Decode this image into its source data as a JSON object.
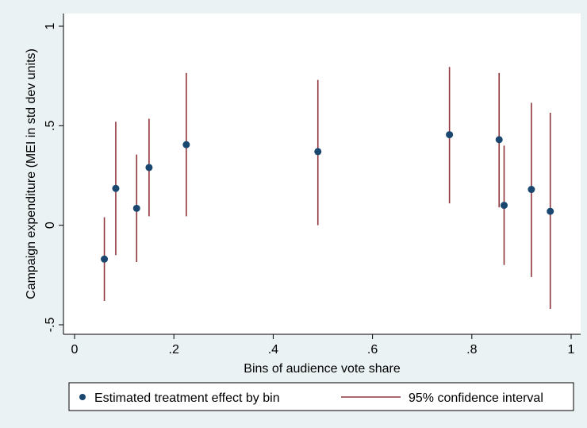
{
  "chart_data": {
    "type": "scatter",
    "xlabel": "Bins of audience vote share",
    "ylabel": "Campaign expenditure (MEI in std dev units)",
    "xlim": [
      0,
      1
    ],
    "ylim": [
      -0.5,
      1
    ],
    "x_ticks": [
      0,
      0.2,
      0.4,
      0.6,
      0.8,
      1
    ],
    "x_tick_labels": [
      "0",
      ".2",
      ".4",
      ".6",
      ".8",
      "1"
    ],
    "y_ticks": [
      -0.5,
      0,
      0.5,
      1
    ],
    "y_tick_labels": [
      "-.5",
      "0",
      ".5",
      "1"
    ],
    "grid": false,
    "legend_position": "bottom",
    "series": [
      {
        "name": "Estimated treatment effect by bin",
        "kind": "point",
        "color": "#1a476f",
        "x": [
          0.06,
          0.083,
          0.125,
          0.15,
          0.225,
          0.49,
          0.755,
          0.855,
          0.865,
          0.92,
          0.958
        ],
        "y": [
          -0.17,
          0.185,
          0.085,
          0.29,
          0.405,
          0.37,
          0.455,
          0.43,
          0.1,
          0.18,
          0.07
        ]
      },
      {
        "name": "95% confidence interval",
        "kind": "errorbar",
        "color": "#90353b",
        "x": [
          0.06,
          0.083,
          0.125,
          0.15,
          0.225,
          0.49,
          0.755,
          0.855,
          0.865,
          0.92,
          0.958
        ],
        "low": [
          -0.38,
          -0.15,
          -0.185,
          0.045,
          0.045,
          0.0,
          0.11,
          0.09,
          -0.2,
          -0.26,
          -0.42
        ],
        "high": [
          0.04,
          0.52,
          0.355,
          0.535,
          0.765,
          0.73,
          0.795,
          0.765,
          0.4,
          0.615,
          0.565
        ]
      }
    ]
  }
}
